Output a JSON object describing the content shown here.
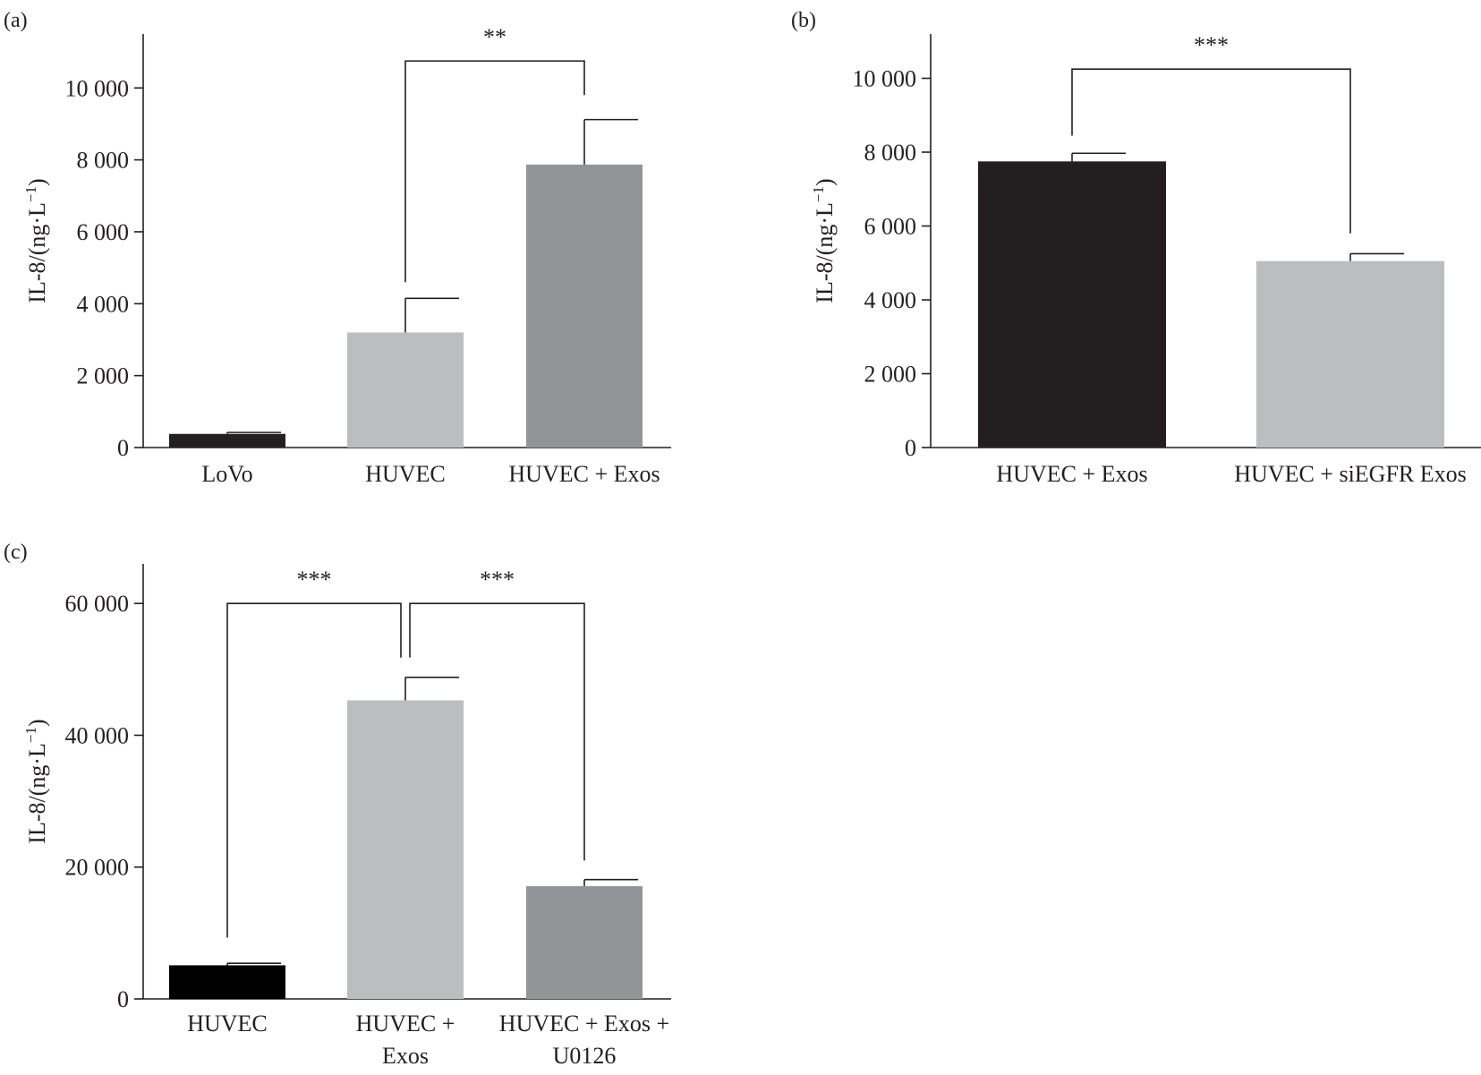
{
  "chart_data": [
    {
      "type": "bar",
      "panel": "(a)",
      "categories": [
        [
          "LoVo"
        ],
        [
          "HUVEC"
        ],
        [
          "HUVEC + Exos"
        ]
      ],
      "values": [
        380,
        3200,
        7870
      ],
      "errors": [
        40,
        950,
        1250
      ],
      "colors": [
        "#231f20",
        "#bcbdbf",
        "#929497"
      ],
      "ylabel": "IL-8/(ng·L",
      "ylabel_sup": "−1",
      "ylabel_close": ")",
      "ylim": [
        0,
        11500
      ],
      "yticks": [
        0,
        2000,
        4000,
        6000,
        8000,
        10000
      ],
      "ytick_labels": [
        "0",
        "2 000",
        "4 000",
        "6 000",
        "8 000",
        "10 000"
      ],
      "significance": [
        {
          "from": 1,
          "to": 2,
          "label": "**",
          "level": 10750,
          "from_bottom": 4600,
          "to_bottom": 9800
        }
      ]
    },
    {
      "type": "bar",
      "panel": "(b)",
      "categories": [
        [
          "HUVEC + Exos"
        ],
        [
          "HUVEC + siEGFR Exos"
        ]
      ],
      "values": [
        7750,
        5050
      ],
      "errors": [
        220,
        200
      ],
      "colors": [
        "#231f20",
        "#bcbdbf"
      ],
      "ylabel": "IL-8/(ng·L",
      "ylabel_sup": "−1",
      "ylabel_close": ")",
      "ylim": [
        0,
        11200
      ],
      "yticks": [
        0,
        2000,
        4000,
        6000,
        8000,
        10000
      ],
      "ytick_labels": [
        "0",
        "2 000",
        "4 000",
        "6 000",
        "8 000",
        "10 000"
      ],
      "significance": [
        {
          "from": 0,
          "to": 1,
          "label": "***",
          "level": 10250,
          "from_bottom": 8450,
          "to_bottom": 5800
        }
      ]
    },
    {
      "type": "bar",
      "panel": "(c)",
      "categories": [
        [
          "HUVEC"
        ],
        [
          "HUVEC +",
          "Exos"
        ],
        [
          "HUVEC + Exos +",
          "U0126"
        ]
      ],
      "values": [
        5100,
        45300,
        17100
      ],
      "errors": [
        300,
        3500,
        1000
      ],
      "colors": [
        "#000000",
        "#bcbdbf",
        "#929497"
      ],
      "ylabel": "IL-8/(ng·L",
      "ylabel_sup": "−1",
      "ylabel_close": ")",
      "ylim": [
        0,
        66000
      ],
      "yticks": [
        0,
        20000,
        40000,
        60000
      ],
      "ytick_labels": [
        "0",
        "20 000",
        "40 000",
        "60 000"
      ],
      "significance": [
        {
          "from": 0,
          "to": 1,
          "label": "***",
          "level": 60000,
          "from_bottom": 9300,
          "to_bottom": 51800
        },
        {
          "from": 1,
          "to": 2,
          "label": "***",
          "level": 60000,
          "from_bottom": 51800,
          "to_bottom": 21000
        }
      ]
    }
  ]
}
